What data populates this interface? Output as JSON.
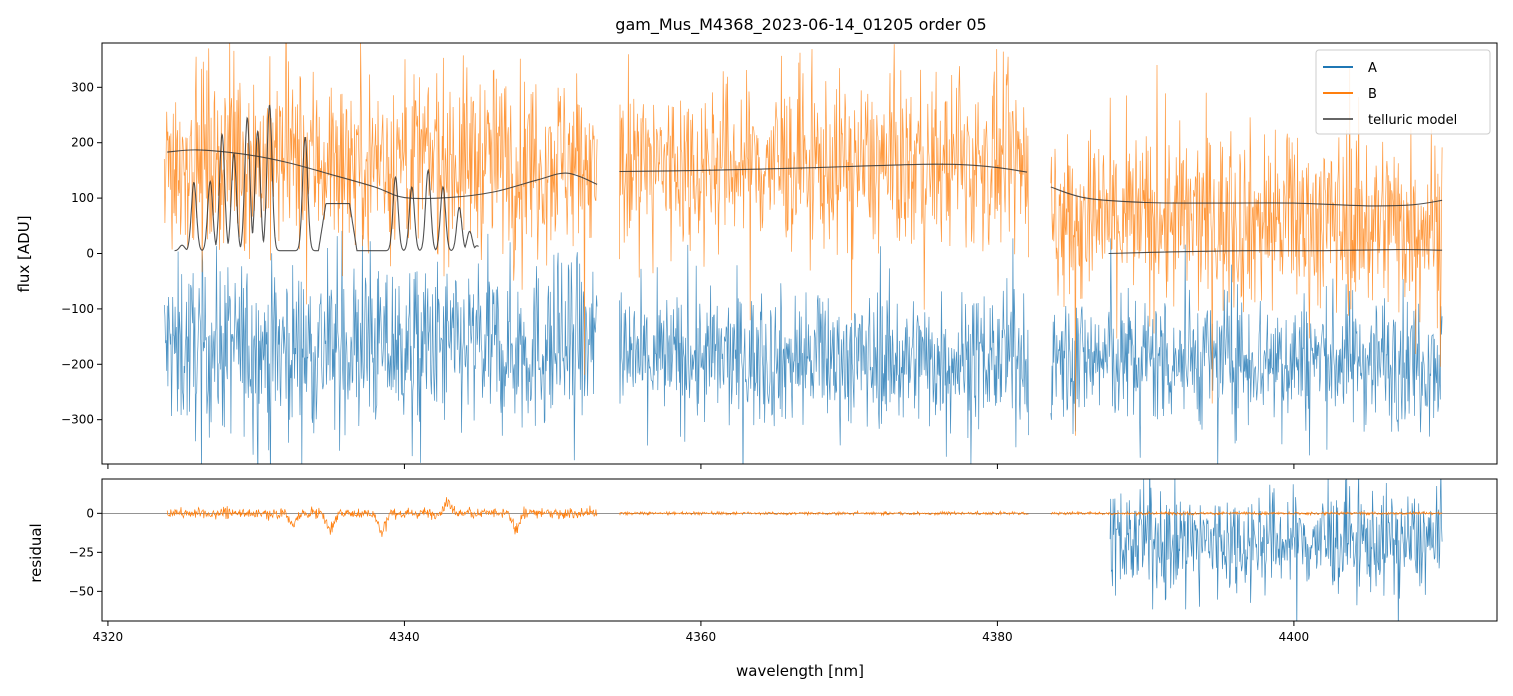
{
  "chart_data": {
    "type": "line",
    "title": "gam_Mus_M4368_2023-06-14_01205  order 05",
    "xlabel": "wavelength [nm]",
    "xlim": [
      4319.6,
      4413.7
    ],
    "x_ticks": [
      4320,
      4340,
      4360,
      4380,
      4400
    ],
    "legend": {
      "position": "top-right",
      "entries": [
        {
          "name": "A",
          "color": "#1f77b4"
        },
        {
          "name": "B",
          "color": "#ff7f0e"
        },
        {
          "name": "telluric model",
          "color": "#333333"
        }
      ]
    },
    "panels": [
      {
        "id": "flux",
        "ylabel": "flux [ADU]",
        "ylim": [
          -380,
          380
        ],
        "y_ticks": [
          300,
          200,
          100,
          0,
          -100,
          -200,
          -300
        ],
        "segments": [
          {
            "x_range": [
              4323.8,
              4353.0
            ],
            "A_level": -170,
            "A_spread": 140,
            "B_level": 170,
            "B_spread": 150
          },
          {
            "x_range": [
              4354.5,
              4382.1
            ],
            "A_level": -190,
            "A_spread": 110,
            "B_level": 160,
            "B_spread": 140
          },
          {
            "x_range": [
              4383.6,
              4410.0
            ],
            "A_level": -190,
            "A_spread": 110,
            "B_level": 60,
            "B_spread": 150
          }
        ],
        "telluric_model": [
          {
            "x": [
              4324.0,
              4326.0,
              4329.0,
              4332.0,
              4335.0,
              4338.0,
              4340.0,
              4343.0,
              4346.0,
              4349.0,
              4351.0,
              4353.0
            ],
            "y": [
              183,
              187,
              180,
              165,
              143,
              120,
              101,
              101,
              111,
              133,
              145,
              125
            ]
          },
          {
            "x": [
              4354.5,
              4360.0,
              4365.0,
              4370.0,
              4375.0,
              4378.0,
              4380.0,
              4382.0
            ],
            "y": [
              148,
              150,
              153,
              157,
              161,
              160,
              155,
              147
            ]
          },
          {
            "x": [
              4383.6,
              4386.0,
              4390.0,
              4395.0,
              4400.0,
              4405.0,
              4408.0,
              4410.0
            ],
            "y": [
              120,
              100,
              92,
              91,
              91,
              86,
              88,
              96
            ]
          },
          {
            "x": [
              4387.5,
              4392.0,
              4397.0,
              4402.0,
              4407.0,
              4410.0
            ],
            "y": [
              0,
              3,
              5,
              5,
              7,
              6
            ]
          }
        ],
        "telluric_lines": {
          "x_range": [
            4324.5,
            4345.0
          ],
          "baseline": 5,
          "peaks": [
            {
              "x": 4325.0,
              "y": 15
            },
            {
              "x": 4325.8,
              "y": 128
            },
            {
              "x": 4326.9,
              "y": 130
            },
            {
              "x": 4327.7,
              "y": 215
            },
            {
              "x": 4328.5,
              "y": 180
            },
            {
              "x": 4329.4,
              "y": 245
            },
            {
              "x": 4330.1,
              "y": 220
            },
            {
              "x": 4330.9,
              "y": 268
            },
            {
              "x": 4333.3,
              "y": 210
            },
            {
              "x": 4339.4,
              "y": 138
            },
            {
              "x": 4340.5,
              "y": 120
            },
            {
              "x": 4341.6,
              "y": 150
            },
            {
              "x": 4342.6,
              "y": 120
            },
            {
              "x": 4343.7,
              "y": 83
            },
            {
              "x": 4344.4,
              "y": 40
            },
            {
              "x": 4344.9,
              "y": 14
            }
          ],
          "plateau": {
            "x_range": [
              4334.2,
              4336.8
            ],
            "y": 90
          }
        }
      },
      {
        "id": "residual",
        "ylabel": "residual",
        "ylim": [
          -69,
          22
        ],
        "y_ticks": [
          0,
          -25,
          -50
        ],
        "zero_line": true,
        "B_residual_segments": [
          {
            "x_range": [
              4324.0,
              4353.0
            ],
            "spread": 5
          },
          {
            "x_range": [
              4354.5,
              4382.1
            ],
            "spread": 1.5
          },
          {
            "x_range": [
              4383.6,
              4410.0
            ],
            "spread": 1.5
          }
        ],
        "B_residual_dips": [
          {
            "x": 4332.5,
            "y": -9
          },
          {
            "x": 4335.0,
            "y": -13
          },
          {
            "x": 4338.5,
            "y": -14
          },
          {
            "x": 4343.0,
            "y": 10
          },
          {
            "x": 4347.5,
            "y": -12
          }
        ],
        "A_residual": {
          "x_range": [
            4387.6,
            4410.0
          ],
          "level": -18,
          "spread": 30,
          "min": -69,
          "max": 22
        }
      }
    ]
  }
}
